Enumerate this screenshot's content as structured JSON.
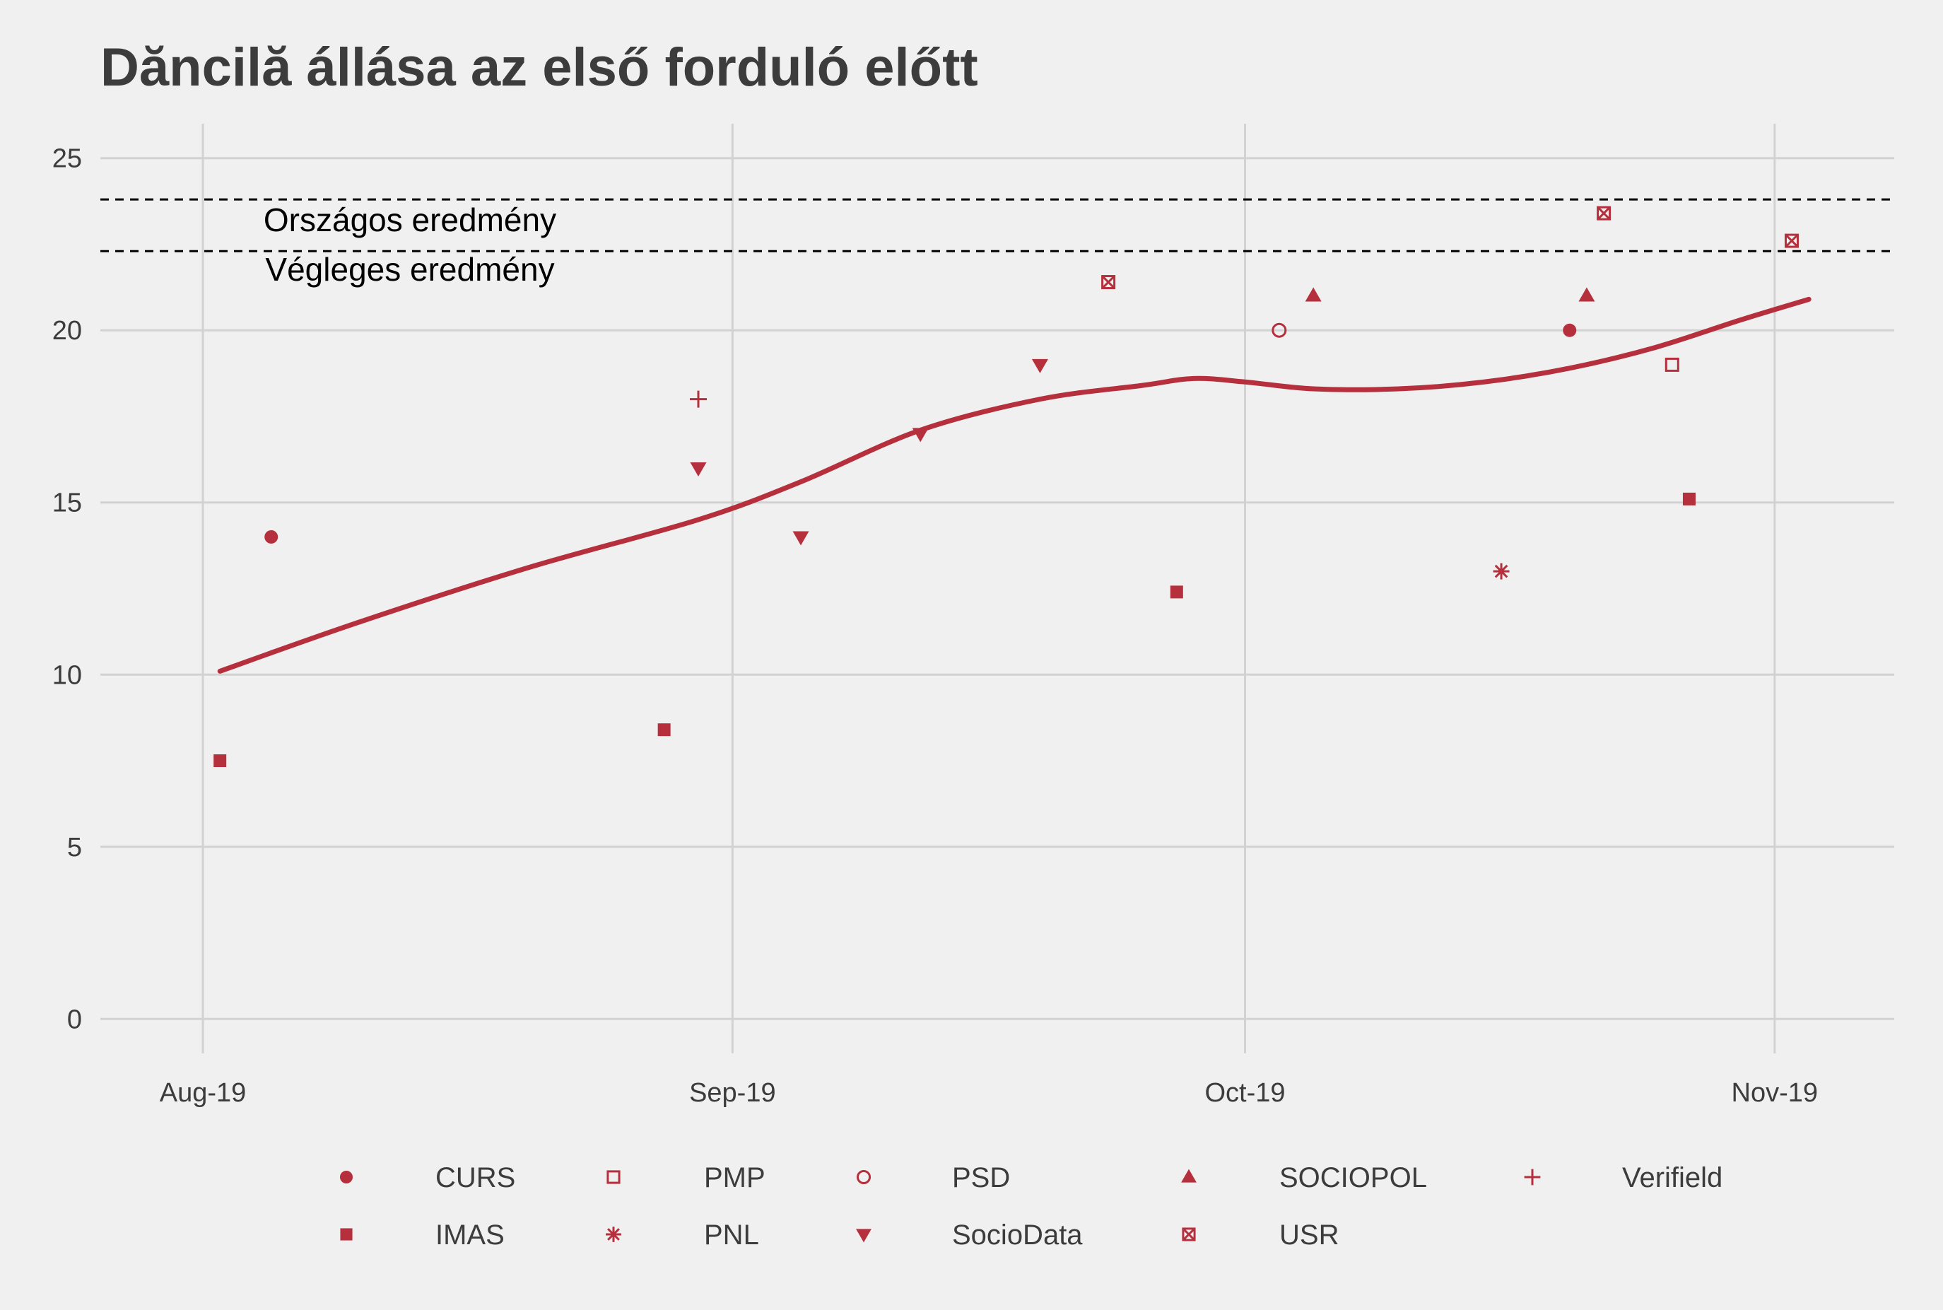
{
  "chart_data": {
    "type": "scatter",
    "title": "Dăncilă állása az első forduló előtt",
    "xlabel": "",
    "ylabel": "",
    "x_ticks": [
      "Aug-19",
      "Sep-19",
      "Oct-19",
      "Nov-19"
    ],
    "x_tick_dates": [
      "2019-08-01",
      "2019-09-01",
      "2019-10-01",
      "2019-11-01"
    ],
    "xlim": [
      "2019-07-26",
      "2019-11-08"
    ],
    "ylim": [
      -1,
      26
    ],
    "y_ticks": [
      0,
      5,
      10,
      15,
      20,
      25
    ],
    "grid": true,
    "legend_position": "bottom",
    "color": "#b5303c",
    "reference_lines": [
      {
        "label": "Országos eredmény",
        "y": 23.8
      },
      {
        "label": "Végleges eredmény",
        "y": 22.3
      }
    ],
    "series": [
      {
        "name": "CURS",
        "marker": "filled-circle",
        "points": [
          {
            "x": "2019-08-05",
            "y": 14
          },
          {
            "x": "2019-10-20",
            "y": 20
          }
        ]
      },
      {
        "name": "IMAS",
        "marker": "filled-square",
        "points": [
          {
            "x": "2019-08-02",
            "y": 7.5
          },
          {
            "x": "2019-08-28",
            "y": 8.4
          },
          {
            "x": "2019-09-27",
            "y": 12.4
          },
          {
            "x": "2019-10-27",
            "y": 15.1
          }
        ]
      },
      {
        "name": "PMP",
        "marker": "open-square",
        "points": [
          {
            "x": "2019-10-26",
            "y": 19
          }
        ]
      },
      {
        "name": "PNL",
        "marker": "asterisk",
        "points": [
          {
            "x": "2019-10-16",
            "y": 13
          }
        ]
      },
      {
        "name": "PSD",
        "marker": "open-circle",
        "points": [
          {
            "x": "2019-10-03",
            "y": 20
          }
        ]
      },
      {
        "name": "SocioData",
        "marker": "down-triangle",
        "points": [
          {
            "x": "2019-08-30",
            "y": 16
          },
          {
            "x": "2019-09-05",
            "y": 14
          },
          {
            "x": "2019-09-12",
            "y": 17
          },
          {
            "x": "2019-09-19",
            "y": 19
          }
        ]
      },
      {
        "name": "SOCIOPOL",
        "marker": "up-triangle",
        "points": [
          {
            "x": "2019-10-05",
            "y": 21
          },
          {
            "x": "2019-10-21",
            "y": 21
          }
        ]
      },
      {
        "name": "USR",
        "marker": "boxed-x",
        "points": [
          {
            "x": "2019-09-23",
            "y": 21.4
          },
          {
            "x": "2019-10-22",
            "y": 23.4
          },
          {
            "x": "2019-11-02",
            "y": 22.6
          }
        ]
      },
      {
        "name": "Verifield",
        "marker": "plus",
        "points": [
          {
            "x": "2019-08-30",
            "y": 18
          }
        ]
      }
    ],
    "trend_line": [
      {
        "x": "2019-08-02",
        "y": 10.1
      },
      {
        "x": "2019-08-10",
        "y": 11.5
      },
      {
        "x": "2019-08-20",
        "y": 13.1
      },
      {
        "x": "2019-08-30",
        "y": 14.5
      },
      {
        "x": "2019-09-05",
        "y": 15.6
      },
      {
        "x": "2019-09-12",
        "y": 17.1
      },
      {
        "x": "2019-09-19",
        "y": 18
      },
      {
        "x": "2019-09-25",
        "y": 18.4
      },
      {
        "x": "2019-09-28",
        "y": 18.6
      },
      {
        "x": "2019-10-01",
        "y": 18.5
      },
      {
        "x": "2019-10-05",
        "y": 18.3
      },
      {
        "x": "2019-10-10",
        "y": 18.3
      },
      {
        "x": "2019-10-15",
        "y": 18.5
      },
      {
        "x": "2019-10-20",
        "y": 18.9
      },
      {
        "x": "2019-10-25",
        "y": 19.5
      },
      {
        "x": "2019-10-30",
        "y": 20.3
      },
      {
        "x": "2019-11-03",
        "y": 20.9
      }
    ]
  }
}
